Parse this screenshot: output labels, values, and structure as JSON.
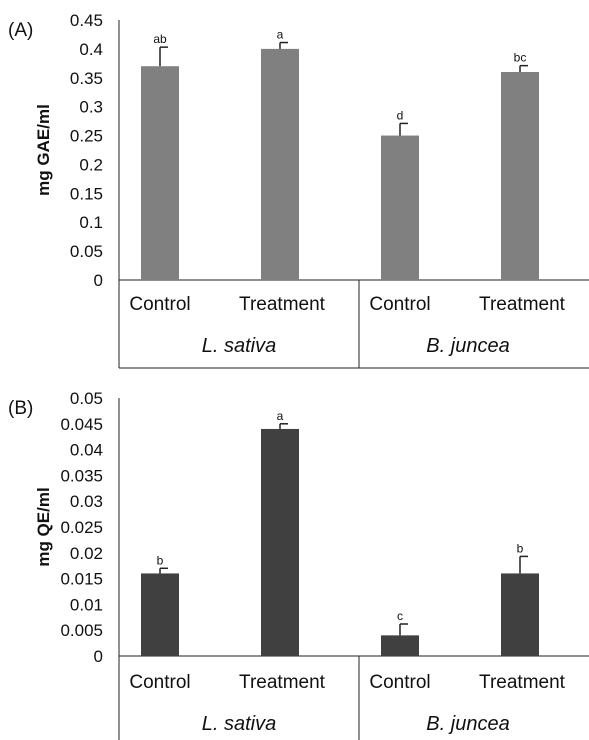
{
  "chart_data": [
    {
      "panel_label": "(A)",
      "type": "bar",
      "ylabel": "mg GAE/ml",
      "ylim": [
        0,
        0.45
      ],
      "yticks": [
        "0",
        "0.05",
        "0.1",
        "0.15",
        "0.2",
        "0.25",
        "0.3",
        "0.35",
        "0.4",
        "0.45"
      ],
      "categories": [
        "Control",
        "Treatment",
        "Control",
        "Treatment"
      ],
      "groups": [
        "L. sativa",
        "B. juncea"
      ],
      "values": [
        0.37,
        0.4,
        0.25,
        0.36
      ],
      "errors": [
        0.033,
        0.011,
        0.021,
        0.011
      ],
      "significance": [
        "ab",
        "a",
        "d",
        "bc"
      ],
      "bar_color": "#808080",
      "grid": false
    },
    {
      "panel_label": "(B)",
      "type": "bar",
      "ylabel": "mg QE/ml",
      "ylim": [
        0,
        0.05
      ],
      "yticks": [
        "0",
        "0.005",
        "0.01",
        "0.015",
        "0.02",
        "0.025",
        "0.03",
        "0.035",
        "0.04",
        "0.045",
        "0.05"
      ],
      "categories": [
        "Control",
        "Treatment",
        "Control",
        "Treatment"
      ],
      "groups": [
        "L. sativa",
        "B. juncea"
      ],
      "values": [
        0.016,
        0.044,
        0.004,
        0.016
      ],
      "errors": [
        0.001,
        0.001,
        0.0022,
        0.0033
      ],
      "significance": [
        "b",
        "a",
        "c",
        "b"
      ],
      "bar_color": "#404040",
      "grid": false
    }
  ]
}
